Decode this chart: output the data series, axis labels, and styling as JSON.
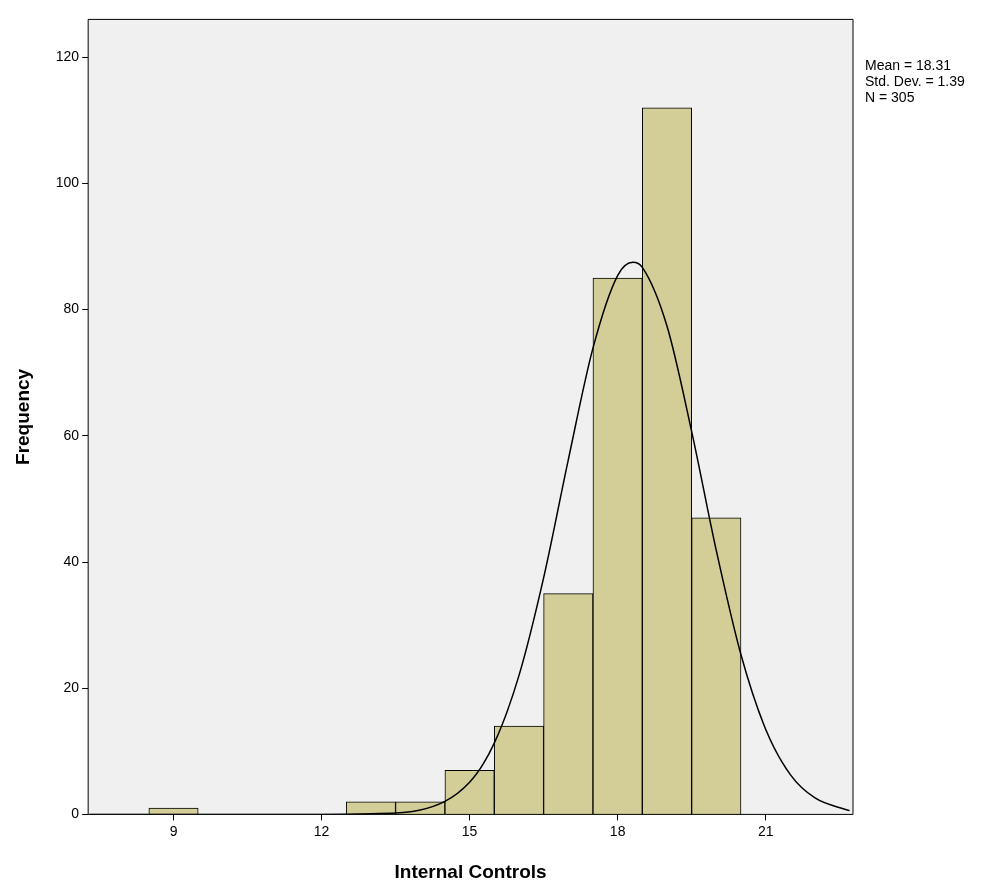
{
  "chart_data": {
    "type": "histogram",
    "xlabel": "Internal Controls",
    "ylabel": "Frequency",
    "bins": [
      8.5,
      9.5,
      10.5,
      11.5,
      12.5,
      13.5,
      14.5,
      15.5,
      16.5,
      17.5,
      18.5,
      19.5,
      20.5
    ],
    "values": [
      1,
      0,
      0,
      0,
      2,
      2,
      7,
      14,
      35,
      85,
      112,
      47
    ],
    "color": "#d3ce97",
    "series": [
      {
        "type": "line",
        "color": "#000000",
        "x": [
          7.3,
          12,
          13,
          14,
          15,
          15.5,
          16,
          16.5,
          17,
          17.5,
          18,
          18.31,
          18.5,
          19,
          19.5,
          20,
          20.5,
          21,
          21.5,
          22,
          22.7
        ],
        "values": [
          0,
          0,
          0.1,
          0.7,
          5.1,
          11.3,
          22,
          37.5,
          56.2,
          73.9,
          85.4,
          87.5,
          86.7,
          77.4,
          60.7,
          41.8,
          25.3,
          13.5,
          6.3,
          2.6,
          0.6
        ]
      }
    ],
    "xlim": [
      7.27,
      22.77
    ],
    "xticks": [
      9,
      12,
      15,
      18,
      21
    ],
    "ylim": [
      0,
      126
    ],
    "yticks": [
      0,
      20,
      40,
      60,
      80,
      100,
      120
    ],
    "grid": false,
    "legend": false,
    "annotations": [
      "Mean = 18.31",
      "Std. Dev. = 1.39",
      "N = 305"
    ]
  }
}
